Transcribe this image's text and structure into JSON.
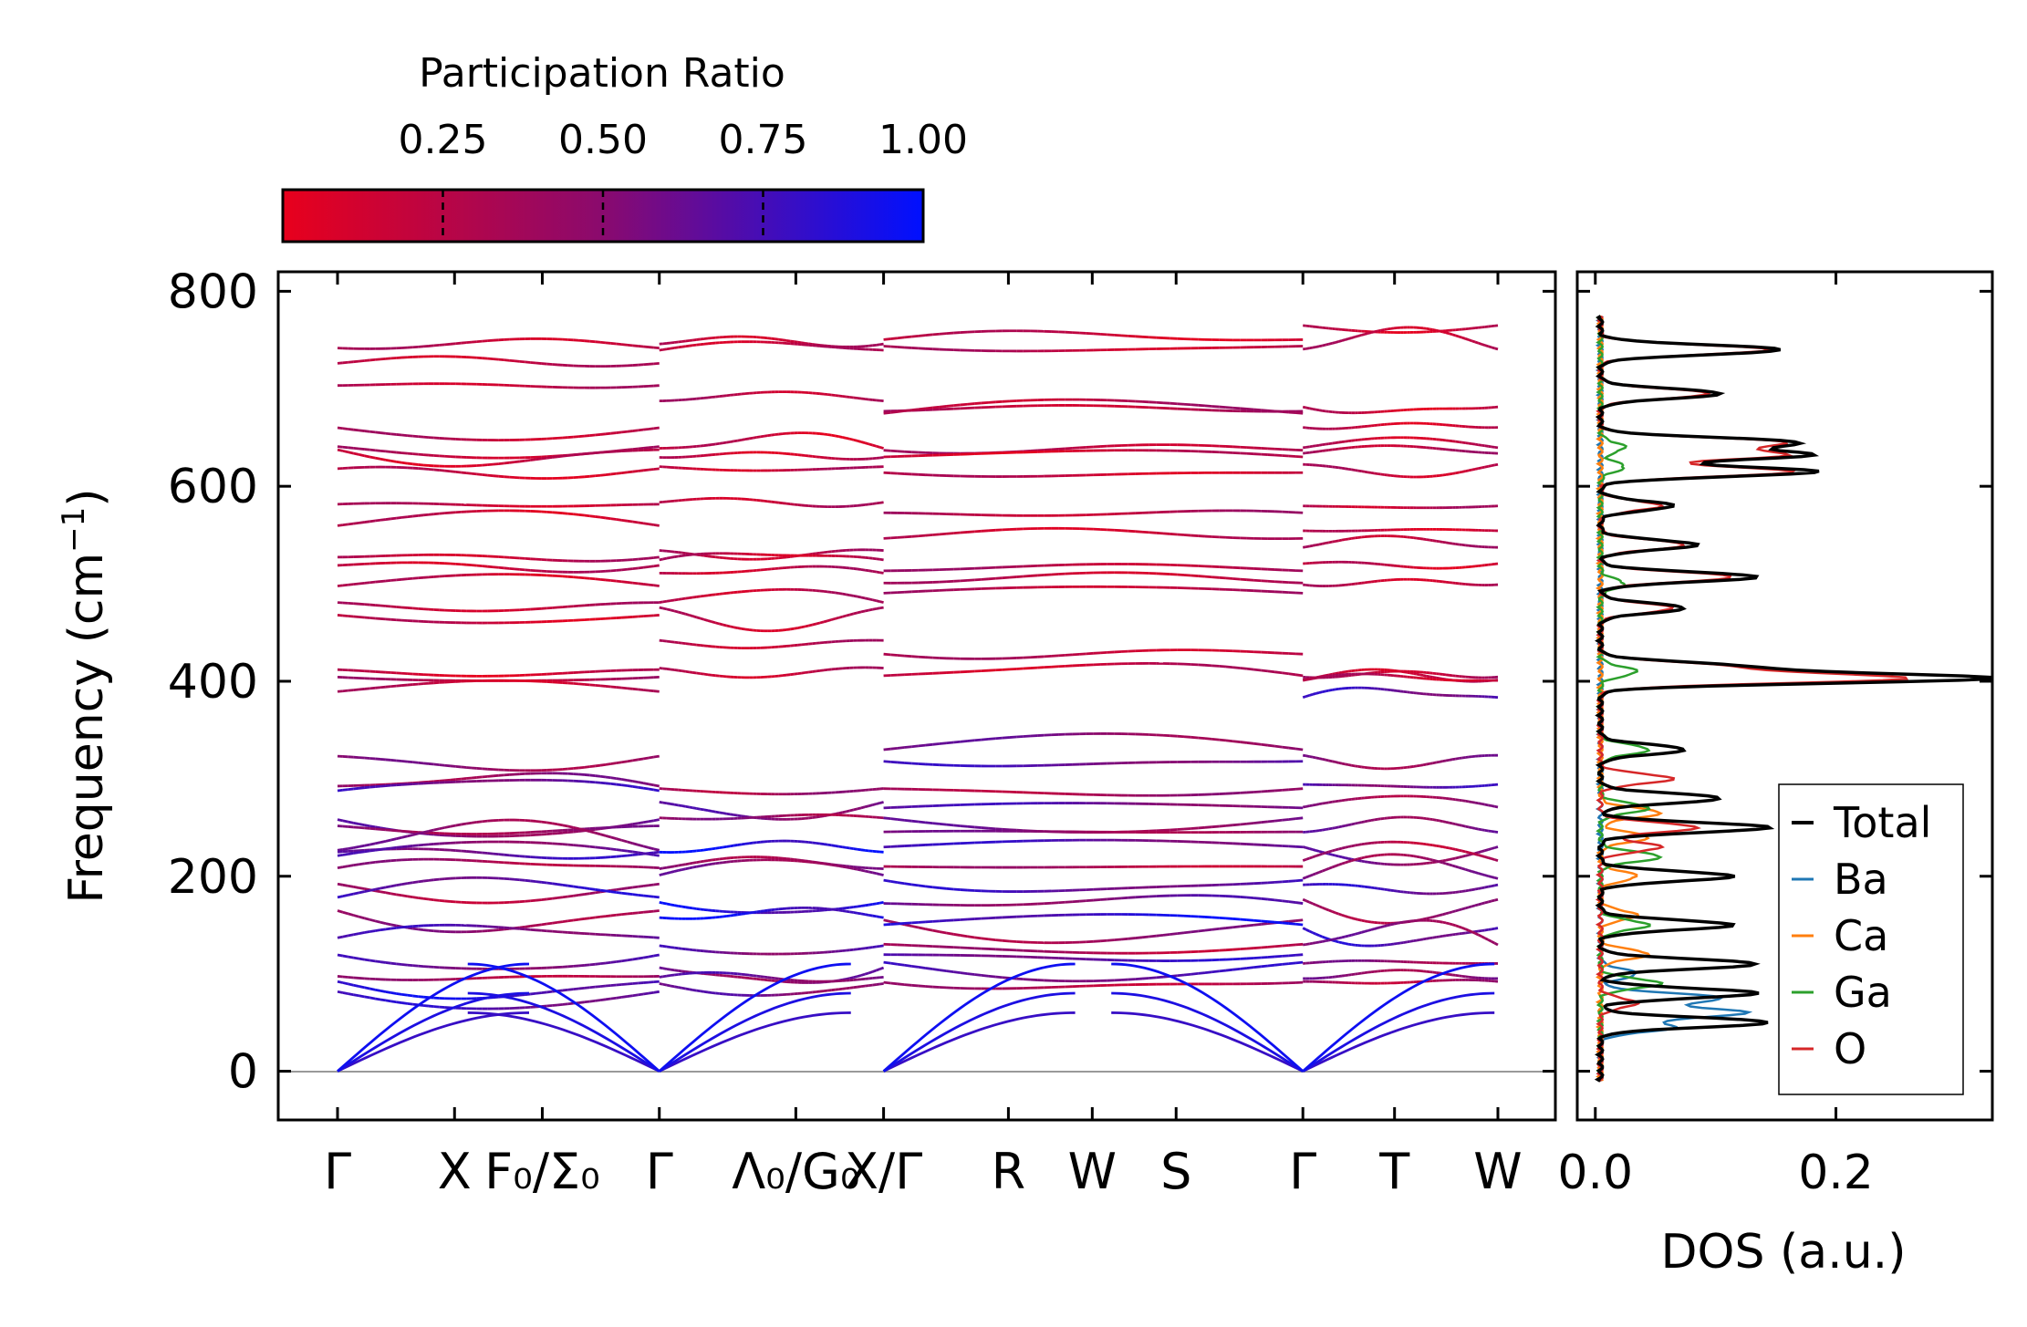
{
  "chart_data": [
    {
      "type": "line",
      "title": "",
      "xlabel": "",
      "ylabel": "Frequency (cm",
      "ylabel_sup": "−1",
      "ylabel_close": ")",
      "ylim": [
        -50,
        820
      ],
      "yticks": [
        0,
        200,
        400,
        600,
        800
      ],
      "ytick_labels": [
        "0",
        "200",
        "400",
        "600",
        "800"
      ],
      "kpoint_labels": [
        "Γ",
        "X",
        "F₀/Σ₀",
        "Γ",
        "Λ₀/G₀",
        "X/Γ",
        "R",
        "W",
        "S",
        "Γ",
        "T",
        "W"
      ],
      "kpoint_positions": [
        0,
        0.6,
        1.05,
        1.65,
        2.35,
        2.8,
        3.44,
        3.87,
        4.3,
        4.95,
        5.42,
        5.95
      ],
      "segments_x": [
        [
          0,
          1.65
        ],
        [
          1.65,
          2.8
        ],
        [
          2.8,
          4.95
        ],
        [
          4.95,
          5.95
        ]
      ],
      "colormap": "participation ratio (red = 0.0, blue = 1.0)",
      "branch_frequencies": {
        "segment1_gamma_to_gamma": [
          745,
          728,
          705,
          660,
          640,
          637,
          615,
          580,
          560,
          530,
          520,
          498,
          478,
          468,
          410,
          405,
          390,
          322,
          292,
          285,
          260,
          250,
          232,
          225,
          220,
          205,
          190,
          180,
          165,
          135,
          122,
          100,
          92,
          82
        ],
        "segment2_gamma_to_x": [
          750,
          740,
          690,
          640,
          635,
          620,
          585,
          530,
          520,
          510,
          480,
          470,
          440,
          410,
          290,
          275,
          260,
          230,
          210,
          200,
          175,
          160,
          130,
          110,
          95,
          90
        ],
        "segment3_gamma_to_gamma": [
          750,
          745,
          680,
          675,
          640,
          630,
          615,
          570,
          550,
          515,
          505,
          490,
          430,
          405,
          330,
          320,
          290,
          270,
          260,
          245,
          230,
          210,
          200,
          170,
          155,
          150,
          130,
          120,
          110,
          95
        ],
        "segment4_gamma_to_w": [
          765,
          745,
          685,
          665,
          640,
          635,
          620,
          580,
          555,
          540,
          520,
          505,
          410,
          405,
          400,
          380,
          320,
          295,
          270,
          250,
          230,
          215,
          200,
          190,
          175,
          150,
          130,
          110,
          100,
          90
        ]
      },
      "colorbar": {
        "title": "Participation Ratio",
        "range": [
          0.0,
          1.0
        ],
        "ticks": [
          0.25,
          0.5,
          0.75,
          1.0
        ],
        "tick_labels": [
          "0.25",
          "0.50",
          "0.75",
          "1.00"
        ],
        "color_low": "#e8001c",
        "color_mid": "#8a0a6e",
        "color_high": "#0010ff"
      }
    },
    {
      "type": "line",
      "title": "",
      "xlabel": "DOS (a.u.)",
      "ylabel": "",
      "xlim": [
        -0.015,
        0.33
      ],
      "xticks": [
        0.0,
        0.2
      ],
      "xtick_labels": [
        "0.0",
        "0.2"
      ],
      "ylim": [
        -50,
        820
      ],
      "legend_position": "bottom-right",
      "series": [
        {
          "name": "Total",
          "color": "#000000",
          "peaks": [
            [
              50,
              0.14
            ],
            [
              80,
              0.13
            ],
            [
              110,
              0.13
            ],
            [
              150,
              0.11
            ],
            [
              200,
              0.11
            ],
            [
              250,
              0.14
            ],
            [
              280,
              0.1
            ],
            [
              330,
              0.07
            ],
            [
              403,
              0.32
            ],
            [
              415,
              0.11
            ],
            [
              475,
              0.07
            ],
            [
              507,
              0.13
            ],
            [
              540,
              0.08
            ],
            [
              580,
              0.06
            ],
            [
              615,
              0.18
            ],
            [
              632,
              0.17
            ],
            [
              645,
              0.16
            ],
            [
              695,
              0.1
            ],
            [
              740,
              0.15
            ]
          ]
        },
        {
          "name": "Ba",
          "color": "#1f77b4",
          "peaks": [
            [
              45,
              0.06
            ],
            [
              60,
              0.12
            ],
            [
              75,
              0.1
            ],
            [
              100,
              0.03
            ]
          ]
        },
        {
          "name": "Ca",
          "color": "#ff7f0e",
          "peaks": [
            [
              120,
              0.04
            ],
            [
              160,
              0.03
            ],
            [
              200,
              0.03
            ],
            [
              240,
              0.04
            ],
            [
              265,
              0.05
            ]
          ]
        },
        {
          "name": "Ga",
          "color": "#2ca02c",
          "peaks": [
            [
              90,
              0.05
            ],
            [
              150,
              0.04
            ],
            [
              220,
              0.05
            ],
            [
              270,
              0.04
            ],
            [
              330,
              0.04
            ],
            [
              410,
              0.03
            ],
            [
              500,
              0.02
            ],
            [
              620,
              0.02
            ],
            [
              640,
              0.02
            ]
          ]
        },
        {
          "name": "O",
          "color": "#d62728",
          "peaks": [
            [
              70,
              0.03
            ],
            [
              230,
              0.05
            ],
            [
              250,
              0.08
            ],
            [
              300,
              0.06
            ],
            [
              403,
              0.25
            ],
            [
              415,
              0.1
            ],
            [
              475,
              0.06
            ],
            [
              507,
              0.11
            ],
            [
              540,
              0.07
            ],
            [
              580,
              0.05
            ],
            [
              615,
              0.16
            ],
            [
              632,
              0.15
            ],
            [
              645,
              0.15
            ],
            [
              695,
              0.09
            ],
            [
              740,
              0.14
            ]
          ]
        }
      ]
    }
  ]
}
